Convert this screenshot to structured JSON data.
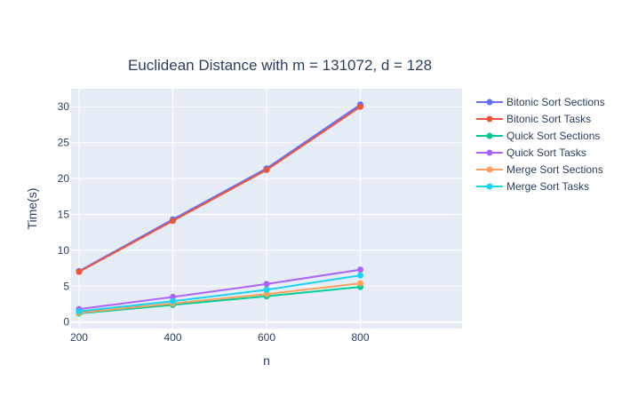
{
  "chart_data": {
    "type": "line",
    "title": "Euclidean Distance with m = 131072, d = 128",
    "xlabel": "n",
    "ylabel": "Time(s)",
    "x": [
      200,
      400,
      600,
      800
    ],
    "xlim": [
      183,
      1017
    ],
    "ylim": [
      -0.9,
      32.5
    ],
    "xticks": [
      200,
      400,
      600,
      800
    ],
    "yticks": [
      0,
      5,
      10,
      15,
      20,
      25,
      30
    ],
    "grid": true,
    "legend": "right",
    "plot_background": "#e5ecf6",
    "series": [
      {
        "name": "Bitonic Sort Sections",
        "color": "#636efa",
        "values": [
          7.1,
          14.3,
          21.4,
          30.3
        ]
      },
      {
        "name": "Bitonic Sort Tasks",
        "color": "#ef553b",
        "values": [
          7.0,
          14.1,
          21.2,
          30.0
        ]
      },
      {
        "name": "Quick Sort Sections",
        "color": "#00cc96",
        "values": [
          1.2,
          2.4,
          3.6,
          4.9
        ]
      },
      {
        "name": "Quick Sort Tasks",
        "color": "#ab63fa",
        "values": [
          1.8,
          3.5,
          5.3,
          7.3
        ]
      },
      {
        "name": "Merge Sort Sections",
        "color": "#ffa15a",
        "values": [
          1.3,
          2.6,
          3.9,
          5.4
        ]
      },
      {
        "name": "Merge Sort Tasks",
        "color": "#19d3f3",
        "values": [
          1.5,
          2.9,
          4.5,
          6.5
        ]
      }
    ]
  }
}
